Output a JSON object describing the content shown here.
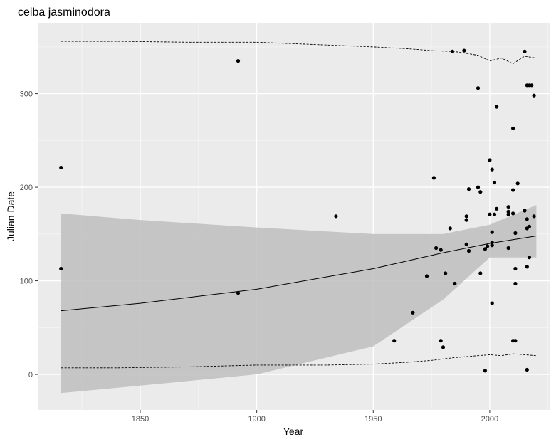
{
  "chart_data": {
    "type": "scatter",
    "title": "ceiba jasminodora",
    "xlabel": "Year",
    "ylabel": "Julian Date",
    "xlim": [
      1806,
      2026
    ],
    "ylim": [
      -38,
      375
    ],
    "x_ticks": [
      1850,
      1900,
      1950,
      2000
    ],
    "y_ticks": [
      0,
      100,
      200,
      300
    ],
    "grid": true,
    "legend": "none",
    "colors": {
      "panel": "#ebebeb",
      "grid_major": "#ffffff",
      "points": "#000000",
      "ribbon": "#bebebe",
      "trend": "#000000"
    },
    "points": [
      {
        "x": 1816,
        "y": 221
      },
      {
        "x": 1816,
        "y": 113
      },
      {
        "x": 1892,
        "y": 335
      },
      {
        "x": 1892,
        "y": 87
      },
      {
        "x": 1934,
        "y": 169
      },
      {
        "x": 1959,
        "y": 36
      },
      {
        "x": 1967,
        "y": 66
      },
      {
        "x": 1973,
        "y": 105
      },
      {
        "x": 1976,
        "y": 210
      },
      {
        "x": 1977,
        "y": 135
      },
      {
        "x": 1979,
        "y": 133
      },
      {
        "x": 1979,
        "y": 36
      },
      {
        "x": 1980,
        "y": 29
      },
      {
        "x": 1981,
        "y": 108
      },
      {
        "x": 1983,
        "y": 156
      },
      {
        "x": 1984,
        "y": 345
      },
      {
        "x": 1985,
        "y": 97
      },
      {
        "x": 1989,
        "y": 346
      },
      {
        "x": 1990,
        "y": 169
      },
      {
        "x": 1990,
        "y": 165
      },
      {
        "x": 1990,
        "y": 139
      },
      {
        "x": 1991,
        "y": 198
      },
      {
        "x": 1991,
        "y": 132
      },
      {
        "x": 1995,
        "y": 306
      },
      {
        "x": 1995,
        "y": 200
      },
      {
        "x": 1996,
        "y": 195
      },
      {
        "x": 1996,
        "y": 108
      },
      {
        "x": 1998,
        "y": 134
      },
      {
        "x": 1998,
        "y": 4
      },
      {
        "x": 1999,
        "y": 137
      },
      {
        "x": 2000,
        "y": 229
      },
      {
        "x": 2000,
        "y": 171
      },
      {
        "x": 2001,
        "y": 219
      },
      {
        "x": 2001,
        "y": 152
      },
      {
        "x": 2001,
        "y": 141
      },
      {
        "x": 2001,
        "y": 138
      },
      {
        "x": 2001,
        "y": 76
      },
      {
        "x": 2002,
        "y": 205
      },
      {
        "x": 2002,
        "y": 171
      },
      {
        "x": 2003,
        "y": 286
      },
      {
        "x": 2003,
        "y": 177
      },
      {
        "x": 2008,
        "y": 179
      },
      {
        "x": 2008,
        "y": 174
      },
      {
        "x": 2008,
        "y": 171
      },
      {
        "x": 2008,
        "y": 135
      },
      {
        "x": 2010,
        "y": 263
      },
      {
        "x": 2010,
        "y": 197
      },
      {
        "x": 2010,
        "y": 172
      },
      {
        "x": 2010,
        "y": 36
      },
      {
        "x": 2011,
        "y": 151
      },
      {
        "x": 2011,
        "y": 113
      },
      {
        "x": 2011,
        "y": 97
      },
      {
        "x": 2011,
        "y": 36
      },
      {
        "x": 2012,
        "y": 204
      },
      {
        "x": 2015,
        "y": 345
      },
      {
        "x": 2015,
        "y": 175
      },
      {
        "x": 2016,
        "y": 309
      },
      {
        "x": 2016,
        "y": 166
      },
      {
        "x": 2016,
        "y": 156
      },
      {
        "x": 2016,
        "y": 115
      },
      {
        "x": 2016,
        "y": 5
      },
      {
        "x": 2017,
        "y": 309
      },
      {
        "x": 2017,
        "y": 158
      },
      {
        "x": 2017,
        "y": 125
      },
      {
        "x": 2018,
        "y": 309
      },
      {
        "x": 2019,
        "y": 298
      },
      {
        "x": 2019,
        "y": 169
      }
    ],
    "trend": {
      "x": [
        1816,
        1850,
        1900,
        1950,
        1980,
        2000,
        2020
      ],
      "y": [
        68,
        76,
        91,
        113,
        130,
        140,
        148
      ],
      "ribbon_lower": [
        -20,
        -12,
        0,
        30,
        80,
        125,
        125
      ],
      "ribbon_upper": [
        172,
        165,
        157,
        150,
        150,
        160,
        181
      ]
    },
    "upper_envelope": {
      "x": [
        1816,
        1840,
        1870,
        1900,
        1930,
        1950,
        1965,
        1975,
        1985,
        1995,
        2000,
        2005,
        2010,
        2015,
        2020
      ],
      "y": [
        356,
        356,
        355,
        355,
        352,
        350,
        348,
        346,
        345,
        341,
        335,
        338,
        332,
        340,
        338
      ]
    },
    "lower_envelope": {
      "x": [
        1816,
        1840,
        1870,
        1900,
        1930,
        1950,
        1965,
        1975,
        1985,
        1995,
        2000,
        2005,
        2010,
        2015,
        2020
      ],
      "y": [
        7,
        7,
        8,
        10,
        10,
        11,
        13,
        15,
        18,
        20,
        21,
        20,
        22,
        21,
        20
      ]
    }
  }
}
